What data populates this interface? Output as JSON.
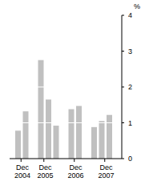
{
  "chart_data": {
    "type": "bar",
    "y_label": "%",
    "categories": [
      null,
      "Dec 2004",
      null,
      null,
      "Dec 2005",
      null,
      null,
      null,
      "Dec 2006",
      null,
      null,
      null,
      "Dec 2007"
    ],
    "values": [
      0.78,
      1.32,
      null,
      2.75,
      1.65,
      0.92,
      null,
      1.38,
      1.47,
      null,
      0.88,
      1.05,
      1.22
    ],
    "color": "#c0c0c0",
    "ylim": [
      0,
      4
    ],
    "yticks": [
      0,
      1,
      2,
      3,
      4
    ],
    "grid": true
  }
}
